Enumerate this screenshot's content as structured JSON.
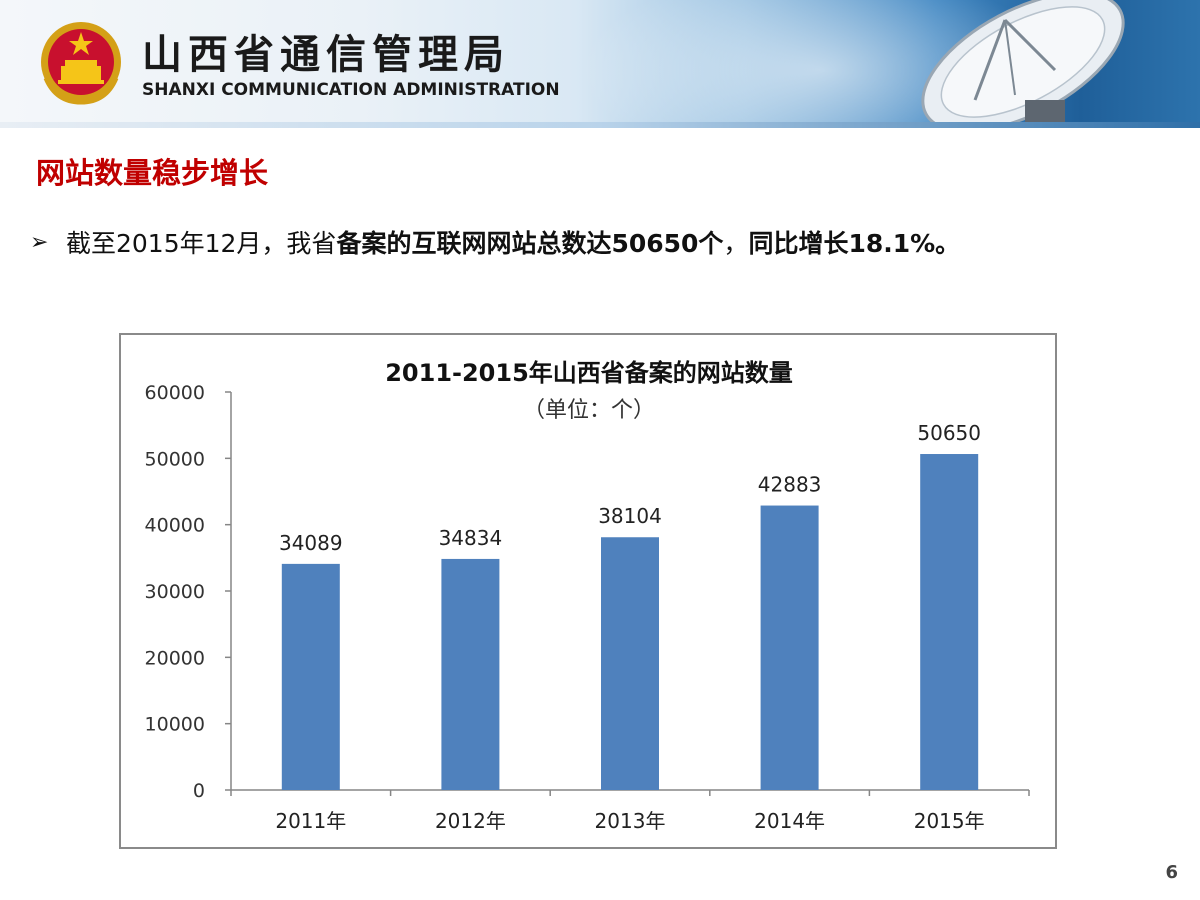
{
  "header": {
    "org_name_cn": "山西省通信管理局",
    "org_name_en": "SHANXI COMMUNICATION ADMINISTRATION"
  },
  "slide": {
    "heading": "网站数量稳步增长",
    "bullet_prefix": "截至2015年12月，我省",
    "bullet_bold_1": "备案的互联网网站总数达50650个",
    "bullet_mid": "，",
    "bullet_bold_2": "同比增长18.1%。",
    "page_number": "6"
  },
  "colors": {
    "bar": "#4f81bd",
    "heading": "#c00000"
  },
  "chart_data": {
    "type": "bar",
    "title": "2011-2015年山西省备案的网站数量",
    "subtitle": "（单位：个）",
    "categories": [
      "2011年",
      "2012年",
      "2013年",
      "2014年",
      "2015年"
    ],
    "values": [
      34089,
      34834,
      38104,
      42883,
      50650
    ],
    "data_labels": [
      "34089",
      "34834",
      "38104",
      "42883",
      "50650"
    ],
    "ylim": [
      0,
      60000
    ],
    "yticks": [
      "0",
      "10000",
      "20000",
      "30000",
      "40000",
      "50000",
      "60000"
    ],
    "grid": false,
    "legend": "none"
  }
}
